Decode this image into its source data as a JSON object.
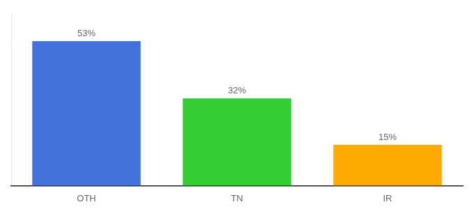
{
  "chart_data": {
    "type": "bar",
    "categories": [
      "OTH",
      "TN",
      "IR"
    ],
    "values": [
      53,
      32,
      15
    ],
    "value_labels": [
      "53%",
      "32%",
      "15%"
    ],
    "colors": [
      "#4472db",
      "#33cc33",
      "#ffaa00"
    ],
    "ylim": [
      0,
      63
    ],
    "yticks": [],
    "tick_labels": "x",
    "data_labels": true,
    "grid": false
  }
}
